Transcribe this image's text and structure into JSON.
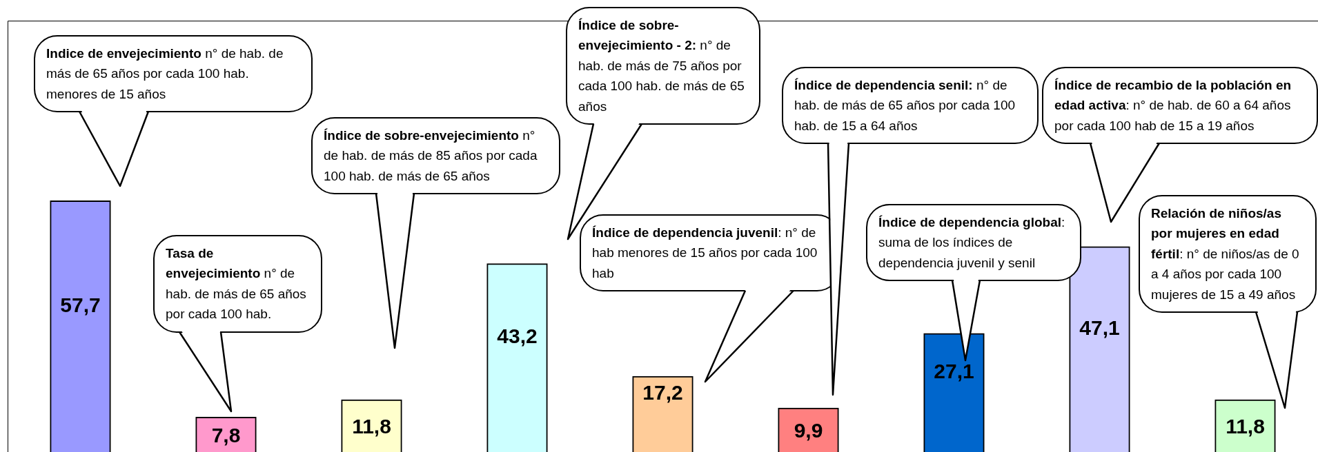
{
  "chart_data": {
    "type": "bar",
    "categories": [
      null,
      null,
      null,
      null,
      null,
      null,
      null,
      null,
      null
    ],
    "values": [
      57.7,
      7.8,
      11.8,
      43.2,
      17.2,
      9.9,
      27.1,
      47.1,
      11.8
    ],
    "value_labels": [
      "57,7",
      "7,8",
      "11,8",
      "43,2",
      "17,2",
      "9,9",
      "27,1",
      "47,1",
      "11,8"
    ],
    "colors": [
      "#9999ff",
      "#ff99cc",
      "#ffffcc",
      "#ccffff",
      "#ffcc99",
      "#ff8080",
      "#0066cc",
      "#ccccff",
      "#ccffcc"
    ],
    "tick_labels": false,
    "grid": false,
    "legend": false,
    "annotations": [
      "Indice de envejecimiento",
      " n° de hab. de más de 65 años por cada 100 hab. menores de 15 años",
      "Tasa de envejecimiento",
      " n° de hab. de más de 65 años por cada 100 hab.",
      "Índice de sobre-envejecimiento",
      " n° de hab. de más de 85 años por cada 100 hab. de más de 65 años",
      "Índice de sobre-envejecimiento - 2:",
      " n° de hab. de más de 75 años por cada 100 hab. de más de 65 años",
      "Índice de dependencia juvenil",
      ":  n° de hab menores de 15 años por cada 100 hab",
      "Índice de dependencia senil:",
      " n° de hab. de más de 65 años por cada 100 hab. de 15 a 64 años",
      "Índice de dependencia global",
      ": suma de los índices de dependencia juvenil y senil",
      "Índice de recambio de la población en edad activa",
      ": n° de hab. de 60 a 64 años por cada 100 hab de 15 a 19 años",
      "Relación de niños/as por mujeres en edad fértil",
      ": n° de niños/as de 0 a 4 años por cada 100 mujeres de 15 a 49 años"
    ]
  }
}
